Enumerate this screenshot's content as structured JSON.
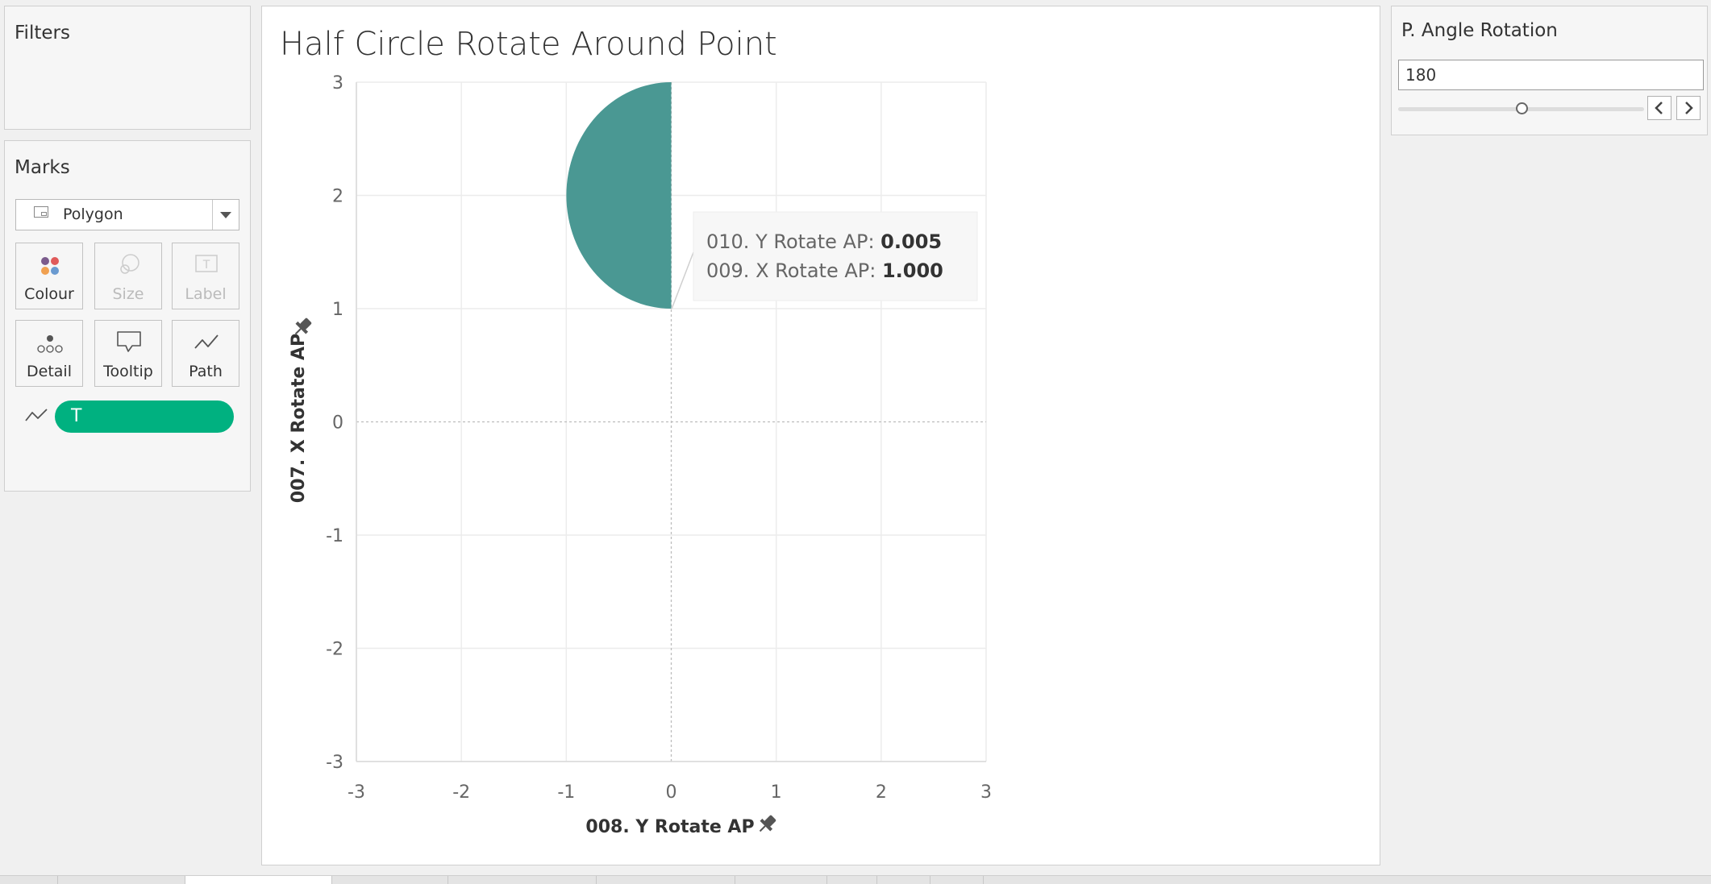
{
  "filters": {
    "title": "Filters"
  },
  "marks": {
    "title": "Marks",
    "mark_type": "Polygon",
    "buttons": [
      {
        "label": "Colour",
        "enabled": true,
        "icon": "colour-dots-icon"
      },
      {
        "label": "Size",
        "enabled": false,
        "icon": "size-circles-icon"
      },
      {
        "label": "Label",
        "enabled": false,
        "icon": "label-t-icon"
      },
      {
        "label": "Detail",
        "enabled": true,
        "icon": "detail-dots-icon"
      },
      {
        "label": "Tooltip",
        "enabled": true,
        "icon": "speech-bubble-icon"
      },
      {
        "label": "Path",
        "enabled": true,
        "icon": "path-line-icon"
      }
    ],
    "path_pill": {
      "label": "T",
      "icon": "path-line-icon",
      "color": "#00b180"
    }
  },
  "sheet": {
    "title": "Half Circle Rotate Around Point"
  },
  "parameter": {
    "title": "P. Angle Rotation",
    "value": "180",
    "slider_fraction": 0.5,
    "prev_icon": "chevron-left-icon",
    "next_icon": "chevron-right-icon"
  },
  "chart_data": {
    "type": "scatter",
    "mark": "polygon",
    "xlabel": "008. Y Rotate AP",
    "ylabel": "007. X Rotate AP",
    "xlim": [
      -3,
      3
    ],
    "ylim": [
      -3,
      3
    ],
    "x_ticks": [
      "-3",
      "-2",
      "-1",
      "0",
      "1",
      "2",
      "3"
    ],
    "y_ticks": [
      "3",
      "2",
      "1",
      "0",
      "-1",
      "-2",
      "-3"
    ],
    "grid": true,
    "fill_color": "#4a9893",
    "polygon": {
      "shape": "half-circle",
      "center": [
        0,
        2
      ],
      "radius": 1,
      "side": "left"
    },
    "tooltip": {
      "rows": [
        {
          "label": "010. Y Rotate AP:",
          "value": "0.005"
        },
        {
          "label": "009. X Rotate AP:",
          "value": "1.000"
        }
      ],
      "point": [
        0.005,
        1.0
      ]
    },
    "axis_pin_icon": "pin-icon"
  },
  "colors": {
    "accent": "#00b180",
    "mark": "#4a9893"
  }
}
